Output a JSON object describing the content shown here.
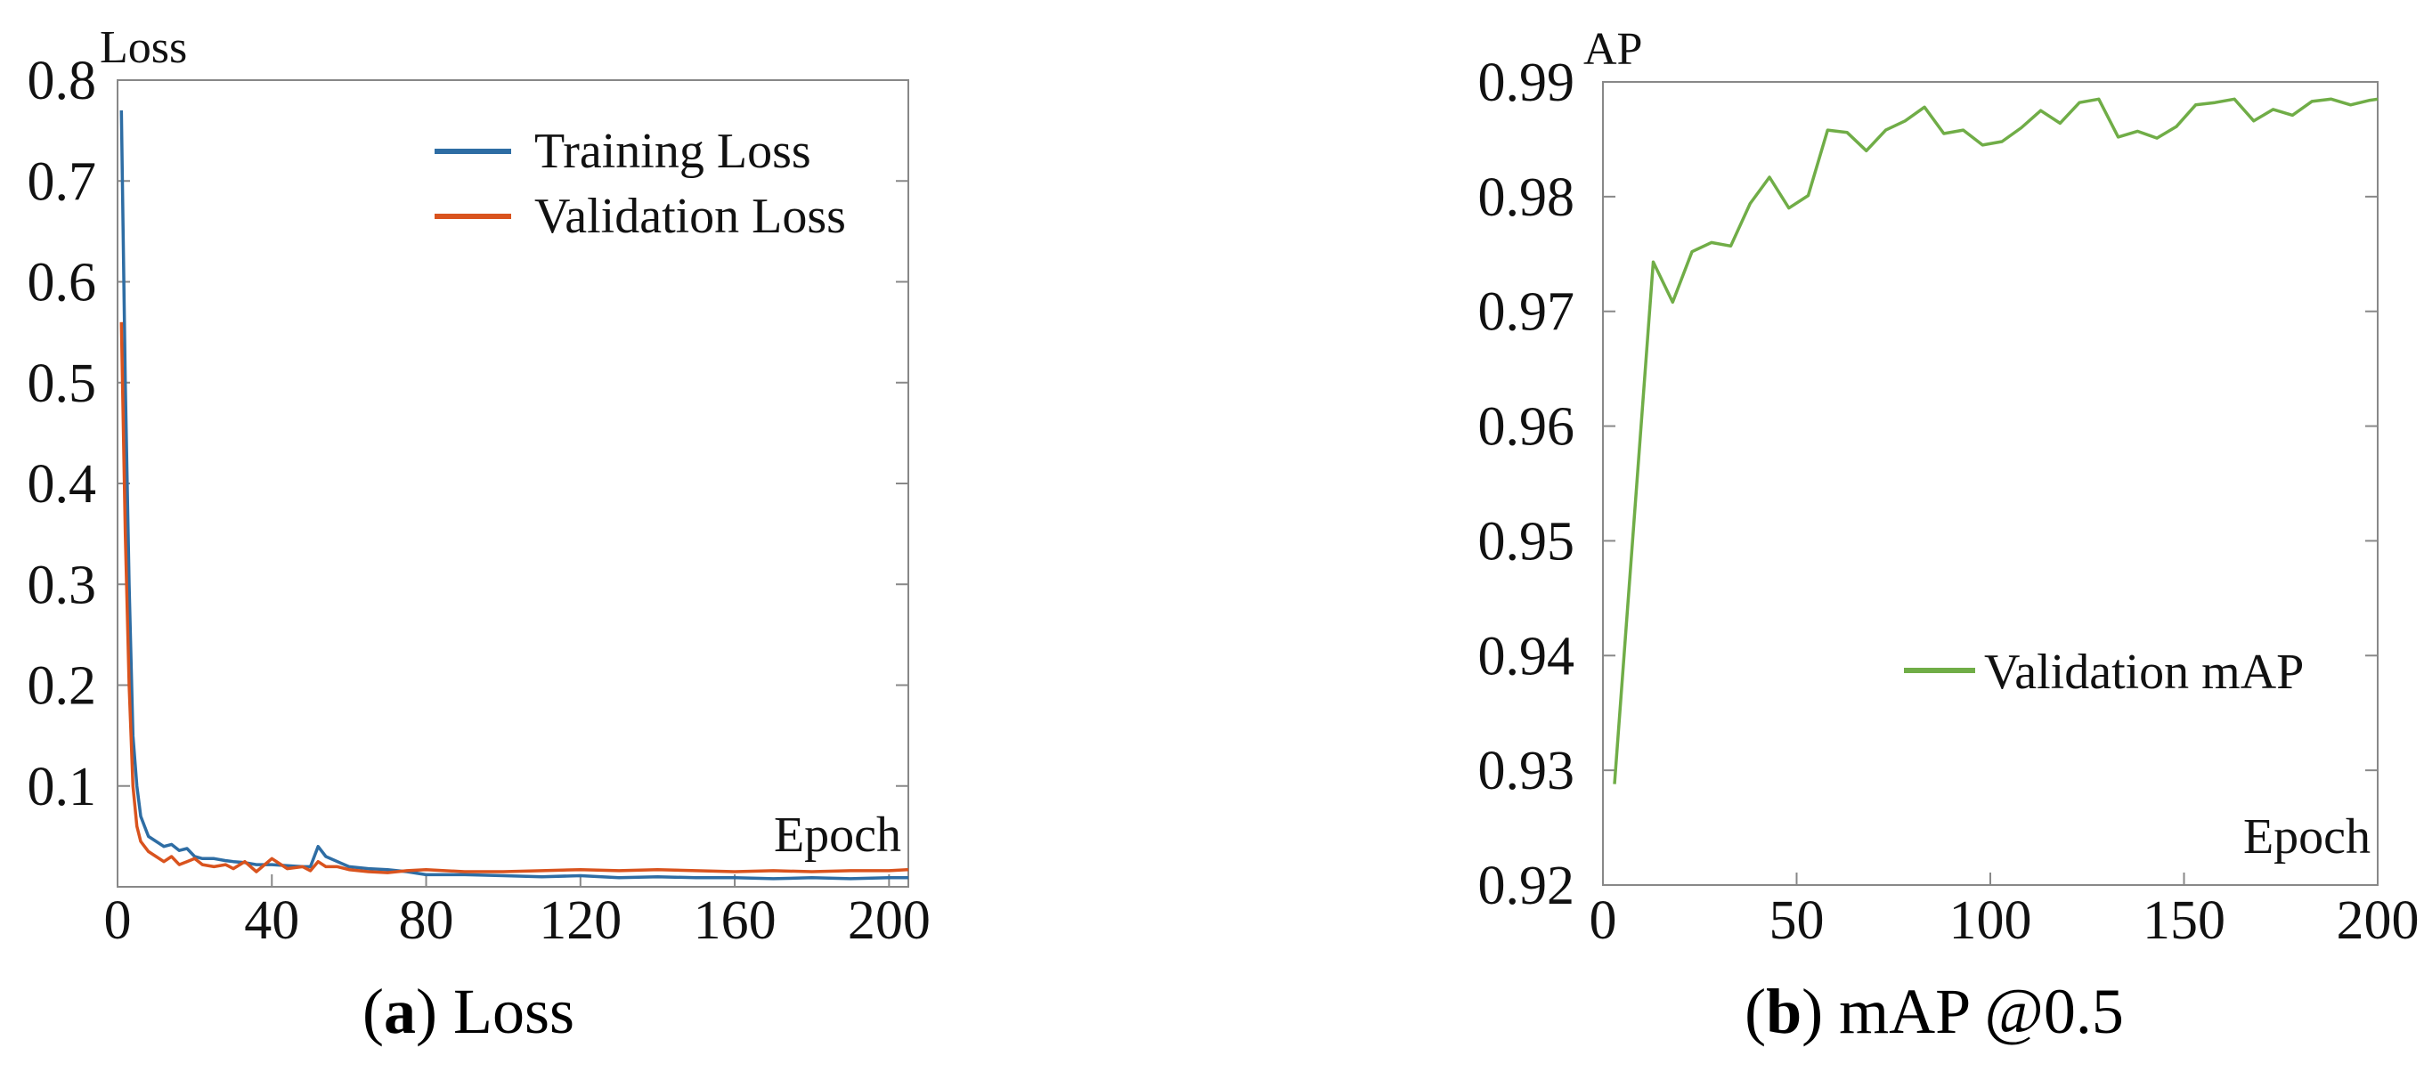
{
  "chart_data": [
    {
      "id": "loss",
      "type": "line",
      "title": "",
      "caption": {
        "letter": "a",
        "text": "Loss"
      },
      "ylabel": "Loss",
      "xlabel": "Epoch",
      "xlim": [
        0,
        205
      ],
      "ylim": [
        0.0,
        0.8
      ],
      "xticks": [
        0,
        40,
        80,
        120,
        160,
        200
      ],
      "yticks": [
        0.1,
        0.2,
        0.3,
        0.4,
        0.5,
        0.6,
        0.7,
        0.8
      ],
      "ytick_labels": [
        "0.1",
        "0.2",
        "0.3",
        "0.4",
        "0.5",
        "0.6",
        "0.7",
        "0.8"
      ],
      "legend_position": "top-right",
      "series": [
        {
          "name": "Training Loss",
          "color": "#2e6da4",
          "x": [
            1,
            2,
            3,
            4,
            5,
            6,
            7,
            8,
            10,
            12,
            14,
            16,
            18,
            20,
            22,
            25,
            28,
            30,
            33,
            36,
            40,
            44,
            48,
            50,
            52,
            54,
            57,
            60,
            65,
            70,
            75,
            80,
            90,
            100,
            110,
            120,
            130,
            140,
            150,
            160,
            170,
            180,
            190,
            200,
            205
          ],
          "y": [
            0.77,
            0.5,
            0.3,
            0.15,
            0.1,
            0.07,
            0.06,
            0.05,
            0.045,
            0.04,
            0.042,
            0.036,
            0.038,
            0.03,
            0.028,
            0.028,
            0.026,
            0.025,
            0.024,
            0.022,
            0.022,
            0.021,
            0.02,
            0.02,
            0.04,
            0.03,
            0.025,
            0.02,
            0.018,
            0.017,
            0.015,
            0.012,
            0.012,
            0.011,
            0.01,
            0.011,
            0.009,
            0.01,
            0.009,
            0.009,
            0.008,
            0.009,
            0.008,
            0.009,
            0.009
          ]
        },
        {
          "name": "Validation Loss",
          "color": "#d9531e",
          "x": [
            1,
            2,
            3,
            4,
            5,
            6,
            7,
            8,
            10,
            12,
            14,
            16,
            18,
            20,
            22,
            25,
            28,
            30,
            33,
            36,
            40,
            44,
            48,
            50,
            52,
            54,
            57,
            60,
            65,
            70,
            75,
            80,
            90,
            100,
            110,
            120,
            130,
            140,
            150,
            160,
            170,
            180,
            190,
            200,
            205
          ],
          "y": [
            0.56,
            0.35,
            0.2,
            0.1,
            0.06,
            0.045,
            0.04,
            0.035,
            0.03,
            0.025,
            0.03,
            0.022,
            0.025,
            0.028,
            0.022,
            0.02,
            0.022,
            0.018,
            0.025,
            0.015,
            0.028,
            0.018,
            0.02,
            0.016,
            0.025,
            0.02,
            0.02,
            0.017,
            0.015,
            0.014,
            0.016,
            0.017,
            0.015,
            0.015,
            0.016,
            0.017,
            0.016,
            0.017,
            0.016,
            0.015,
            0.016,
            0.015,
            0.016,
            0.016,
            0.017
          ]
        }
      ]
    },
    {
      "id": "map",
      "type": "line",
      "title": "",
      "caption": {
        "letter": "b",
        "text": "mAP @0.5"
      },
      "ylabel": "AP",
      "xlabel": "Epoch",
      "xlim": [
        0,
        200
      ],
      "ylim": [
        0.92,
        0.99
      ],
      "xticks": [
        0,
        50,
        100,
        150,
        200
      ],
      "yticks": [
        0.92,
        0.93,
        0.94,
        0.95,
        0.96,
        0.97,
        0.98,
        0.99
      ],
      "ytick_labels": [
        "0.92",
        "0.93",
        "0.94",
        "0.95",
        "0.96",
        "0.97",
        "0.98",
        "0.99"
      ],
      "legend_position": "bottom-right",
      "series": [
        {
          "name": "Validation mAP",
          "color": "#70ad47",
          "x": [
            3,
            13,
            18,
            23,
            28,
            33,
            38,
            43,
            48,
            53,
            58,
            63,
            68,
            73,
            78,
            83,
            88,
            93,
            98,
            103,
            108,
            113,
            118,
            123,
            128,
            133,
            138,
            143,
            148,
            153,
            158,
            163,
            168,
            173,
            178,
            183,
            188,
            193,
            198,
            200
          ],
          "y": [
            0.9288,
            0.9743,
            0.9708,
            0.9752,
            0.976,
            0.9757,
            0.9794,
            0.9817,
            0.979,
            0.9801,
            0.9858,
            0.9856,
            0.984,
            0.9858,
            0.9866,
            0.9878,
            0.9855,
            0.9858,
            0.9845,
            0.9848,
            0.986,
            0.9875,
            0.9864,
            0.9882,
            0.9885,
            0.9852,
            0.9857,
            0.9851,
            0.9861,
            0.988,
            0.9882,
            0.9885,
            0.9866,
            0.9876,
            0.9871,
            0.9883,
            0.9885,
            0.988,
            0.9884,
            0.9885
          ]
        }
      ]
    }
  ]
}
